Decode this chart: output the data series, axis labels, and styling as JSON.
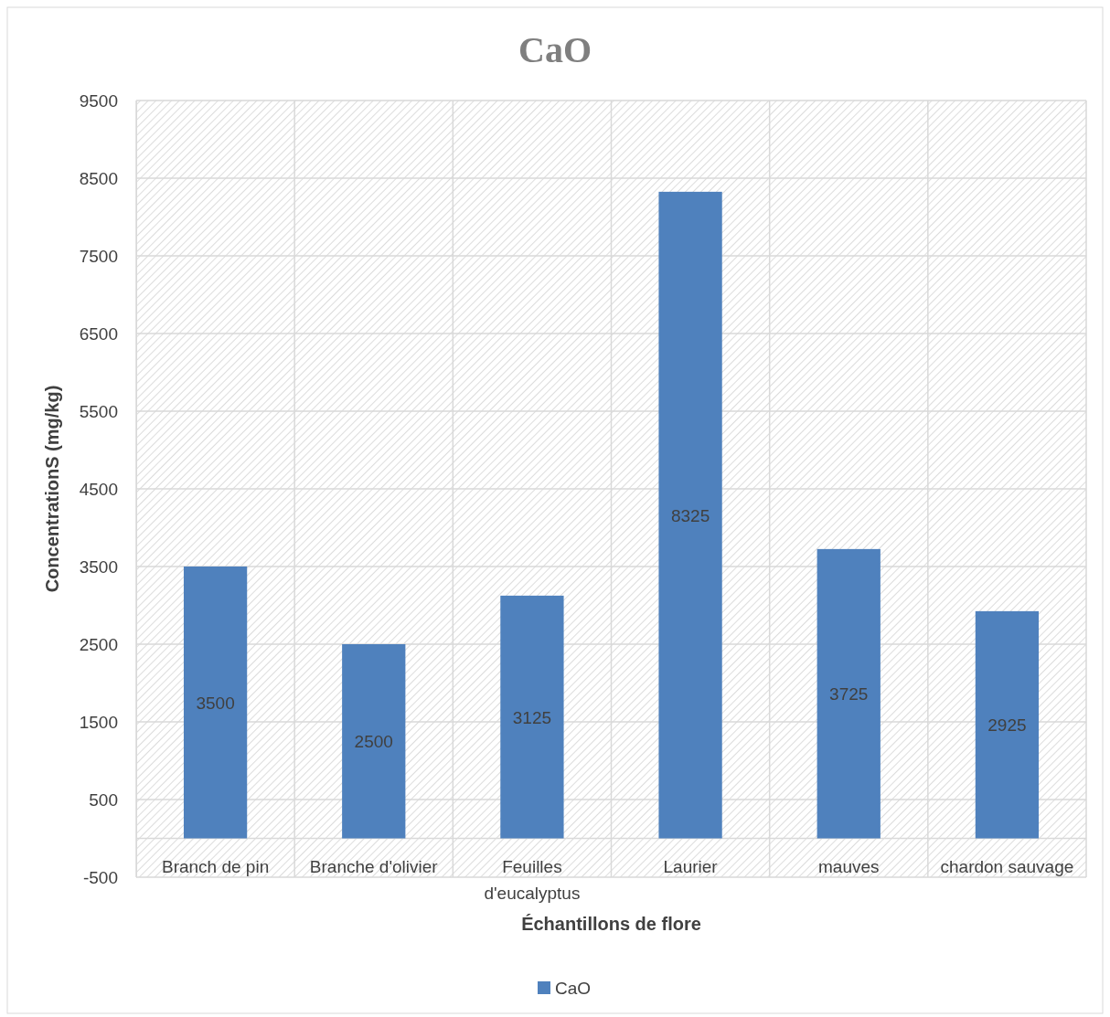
{
  "chart_data": {
    "type": "bar",
    "title": "CaO",
    "xlabel": "Échantillons de flore",
    "ylabel": "ConcentrationS (mg/kg)",
    "categories": [
      "Branch de pin",
      "Branche d'olivier",
      "Feuilles d'eucalyptus",
      "Laurier",
      "mauves",
      "chardon sauvage"
    ],
    "series": [
      {
        "name": "CaO",
        "color": "#4f81bd",
        "values": [
          3500,
          2500,
          3125,
          8325,
          3725,
          2925
        ]
      }
    ],
    "ylim": [
      -500,
      9500
    ],
    "yticks": [
      -500,
      500,
      1500,
      2500,
      3500,
      4500,
      5500,
      6500,
      7500,
      8500,
      9500
    ],
    "grid": true,
    "legend": "bottom",
    "data_labels": true
  }
}
